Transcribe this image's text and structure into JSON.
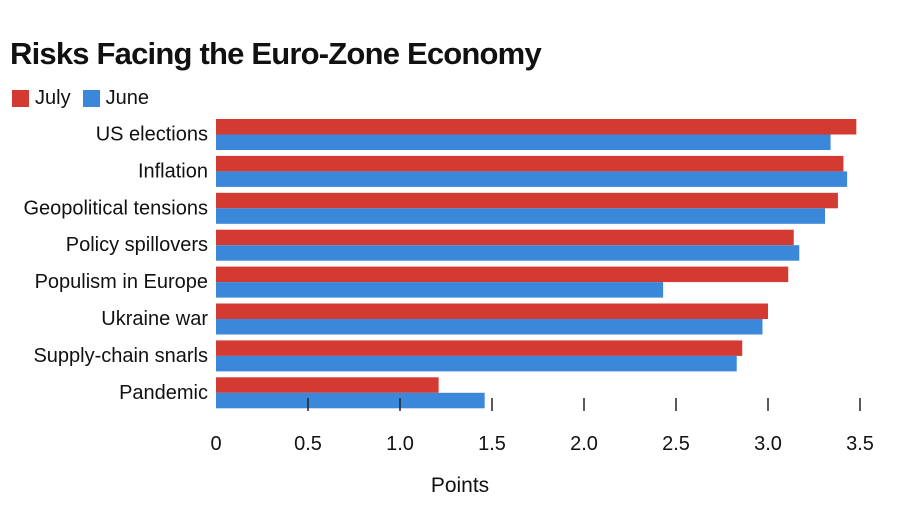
{
  "chart_data": {
    "type": "bar",
    "orientation": "horizontal",
    "title": "Risks Facing the Euro-Zone Economy",
    "xlabel": "Points",
    "ylabel": "",
    "xlim": [
      0,
      3.5
    ],
    "ticks": [
      "0",
      "0.5",
      "1.0",
      "1.5",
      "2.0",
      "2.5",
      "3.0",
      "3.5"
    ],
    "tick_values": [
      0,
      0.5,
      1.0,
      1.5,
      2.0,
      2.5,
      3.0,
      3.5
    ],
    "categories": [
      "US elections",
      "Inflation",
      "Geopolitical tensions",
      "Policy spillovers",
      "Populism in Europe",
      "Ukraine war",
      "Supply-chain snarls",
      "Pandemic"
    ],
    "series": [
      {
        "name": "July",
        "color": "#d23a32",
        "values": [
          3.48,
          3.41,
          3.38,
          3.14,
          3.11,
          3.0,
          2.86,
          1.21
        ]
      },
      {
        "name": "June",
        "color": "#3b87d9",
        "values": [
          3.34,
          3.43,
          3.31,
          3.17,
          2.43,
          2.97,
          2.83,
          1.46
        ]
      }
    ],
    "legend": "top-left",
    "grid": false
  }
}
